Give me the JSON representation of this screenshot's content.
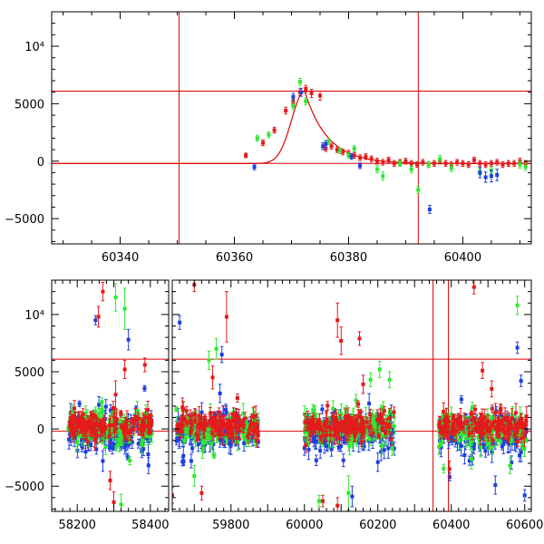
{
  "colors": {
    "red": "#e41a1c",
    "green": "#2ee82e",
    "blue": "#1f3fe0",
    "ref": "#e00000"
  },
  "chart_data": [
    {
      "type": "scatter",
      "title": "",
      "xlabel": "",
      "ylabel": "",
      "xlim": [
        60328,
        60412
      ],
      "ylim": [
        -7200,
        13000
      ],
      "xticks": [
        60340,
        60360,
        60380,
        60400
      ],
      "yticks": [
        {
          "v": -5000,
          "label": "−5000"
        },
        {
          "v": 0,
          "label": "0"
        },
        {
          "v": 5000,
          "label": "5000"
        },
        {
          "v": 10000,
          "label": "10⁴"
        }
      ],
      "hlines": [
        6100,
        -200
      ],
      "vlines": [
        60350.3,
        60392.2
      ],
      "model": {
        "peak_x": 60372.3,
        "peak_y": 6100,
        "baseline": -200,
        "rise_width": 3.2,
        "decay_time": 4.0
      },
      "series": [
        {
          "color": "red",
          "points": [
            [
              60362,
              500,
              200
            ],
            [
              60365,
              1600,
              250
            ],
            [
              60367,
              2700,
              250
            ],
            [
              60369,
              4400,
              300
            ],
            [
              60370.3,
              5100,
              300
            ],
            [
              60371.5,
              6000,
              300
            ],
            [
              60372.5,
              6300,
              300
            ],
            [
              60373.5,
              5900,
              350
            ],
            [
              60375,
              5700,
              400
            ],
            [
              60376,
              1100,
              250
            ],
            [
              60377,
              1300,
              250
            ],
            [
              60378,
              1000,
              250
            ],
            [
              60379,
              800,
              250
            ],
            [
              60380,
              700,
              250
            ],
            [
              60381,
              500,
              250
            ],
            [
              60382,
              300,
              250
            ],
            [
              60383,
              400,
              250
            ],
            [
              60384,
              200,
              250
            ],
            [
              60385,
              0,
              250
            ],
            [
              60386,
              -100,
              250
            ],
            [
              60387,
              100,
              250
            ],
            [
              60388,
              -200,
              250
            ],
            [
              60389,
              -100,
              250
            ],
            [
              60390,
              0,
              250
            ],
            [
              60391,
              -200,
              250
            ],
            [
              60392,
              -300,
              250
            ],
            [
              60393,
              -100,
              250
            ],
            [
              60394,
              -300,
              250
            ],
            [
              60395,
              -200,
              250
            ],
            [
              60396,
              0,
              250
            ],
            [
              60397,
              -200,
              250
            ],
            [
              60398,
              -300,
              250
            ],
            [
              60399,
              -100,
              250
            ],
            [
              60400,
              -200,
              250
            ],
            [
              60401,
              -300,
              250
            ],
            [
              60402,
              100,
              250
            ],
            [
              60403,
              -200,
              250
            ],
            [
              60404,
              -300,
              250
            ],
            [
              60405,
              -200,
              250
            ],
            [
              60406,
              -100,
              250
            ],
            [
              60407,
              -300,
              250
            ],
            [
              60408,
              -200,
              250
            ],
            [
              60409,
              -200,
              250
            ],
            [
              60410,
              0,
              250
            ],
            [
              60411,
              -200,
              250
            ]
          ]
        },
        {
          "color": "green",
          "points": [
            [
              60364,
              2000,
              250
            ],
            [
              60366,
              2300,
              250
            ],
            [
              60370.3,
              4800,
              300
            ],
            [
              60371.5,
              6900,
              300
            ],
            [
              60372.5,
              5200,
              300
            ],
            [
              60376.5,
              1700,
              250
            ],
            [
              60378.5,
              900,
              250
            ],
            [
              60380,
              500,
              250
            ],
            [
              60381,
              1100,
              250
            ],
            [
              60385,
              -700,
              300
            ],
            [
              60386,
              -1300,
              350
            ],
            [
              60389,
              -200,
              250
            ],
            [
              60391,
              -700,
              300
            ],
            [
              60392.2,
              -2500,
              300
            ],
            [
              60394,
              -300,
              250
            ],
            [
              60396,
              200,
              300
            ],
            [
              60398,
              -600,
              300
            ],
            [
              60403,
              -900,
              300
            ],
            [
              60405,
              -800,
              300
            ],
            [
              60410,
              -300,
              300
            ],
            [
              60411,
              -500,
              300
            ]
          ]
        },
        {
          "color": "blue",
          "points": [
            [
              60363.5,
              -500,
              250
            ],
            [
              60370.3,
              5600,
              300
            ],
            [
              60371.7,
              6000,
              350
            ],
            [
              60375.5,
              1300,
              300
            ],
            [
              60376,
              1500,
              300
            ],
            [
              60380.5,
              400,
              250
            ],
            [
              60382,
              -400,
              250
            ],
            [
              60394.2,
              -4200,
              350
            ],
            [
              60403,
              -1000,
              450
            ],
            [
              60404,
              -1400,
              450
            ],
            [
              60405,
              -1300,
              500
            ],
            [
              60406,
              -1200,
              500
            ]
          ]
        }
      ]
    },
    {
      "type": "scatter",
      "title": "",
      "xlabel": "",
      "ylabel": "",
      "ylim": [
        -7200,
        13000
      ],
      "xticks": [
        58200,
        58400,
        59800,
        60000,
        60200,
        60400,
        60600
      ],
      "yticks": [
        {
          "v": -5000,
          "label": "−5000"
        },
        {
          "v": 0,
          "label": "0"
        },
        {
          "v": 5000,
          "label": "5000"
        },
        {
          "v": 10000,
          "label": "10⁴"
        }
      ],
      "hlines": [
        6100,
        -200
      ],
      "vlines": [
        60350.3,
        60392.2
      ],
      "segments": [
        {
          "xlim": [
            58130,
            58450
          ],
          "clusters": [
            [
              58175,
              58405
            ]
          ]
        },
        {
          "xlim": [
            59640,
            60618
          ],
          "clusters": [
            [
              59650,
              59875
            ],
            [
              60000,
              60245
            ],
            [
              60365,
              60605
            ]
          ]
        }
      ],
      "outliers": {
        "red": [
          [
            58258,
            9800,
            900
          ],
          [
            58270,
            12000,
            800
          ],
          [
            58305,
            3000,
            1200
          ],
          [
            58330,
            5200,
            800
          ],
          [
            58385,
            5600,
            600
          ],
          [
            58290,
            -4500,
            800
          ],
          [
            58300,
            -6400,
            900
          ],
          [
            59700,
            12600,
            600
          ],
          [
            59750,
            4500,
            1000
          ],
          [
            59788,
            9800,
            2200
          ],
          [
            59640,
            -5800,
            700
          ],
          [
            59720,
            -5600,
            600
          ],
          [
            60090,
            9500,
            1500
          ],
          [
            60100,
            7700,
            1200
          ],
          [
            60150,
            7900,
            600
          ],
          [
            60160,
            3900,
            800
          ],
          [
            60050,
            -6300,
            500
          ],
          [
            60090,
            -6700,
            700
          ],
          [
            60462,
            12400,
            600
          ],
          [
            60485,
            5100,
            700
          ],
          [
            60510,
            3500,
            700
          ],
          [
            60395,
            -3500,
            700
          ]
        ],
        "green": [
          [
            58305,
            11500,
            1200
          ],
          [
            58330,
            10500,
            1800
          ],
          [
            58320,
            -6600,
            900
          ],
          [
            59740,
            6000,
            800
          ],
          [
            59760,
            7000,
            900
          ],
          [
            59700,
            -4100,
            900
          ],
          [
            60040,
            -6300,
            500
          ],
          [
            60120,
            -5600,
            1500
          ],
          [
            60180,
            4300,
            600
          ],
          [
            60205,
            5200,
            700
          ],
          [
            60232,
            4300,
            700
          ],
          [
            60580,
            10800,
            800
          ],
          [
            60560,
            -3200,
            700
          ],
          [
            60455,
            -2600,
            900
          ]
        ],
        "blue": [
          [
            58250,
            9500,
            400
          ],
          [
            58340,
            7800,
            900
          ],
          [
            58270,
            -2800,
            900
          ],
          [
            58395,
            -3200,
            700
          ],
          [
            59660,
            9300,
            600
          ],
          [
            59775,
            6500,
            700
          ],
          [
            59770,
            3100,
            800
          ],
          [
            60130,
            -5900,
            900
          ],
          [
            60200,
            -2900,
            800
          ],
          [
            60395.5,
            -4200,
            350
          ],
          [
            60520,
            -4900,
            800
          ],
          [
            60580,
            7100,
            500
          ],
          [
            60590,
            4200,
            500
          ],
          [
            60600,
            -5800,
            500
          ]
        ]
      }
    }
  ]
}
